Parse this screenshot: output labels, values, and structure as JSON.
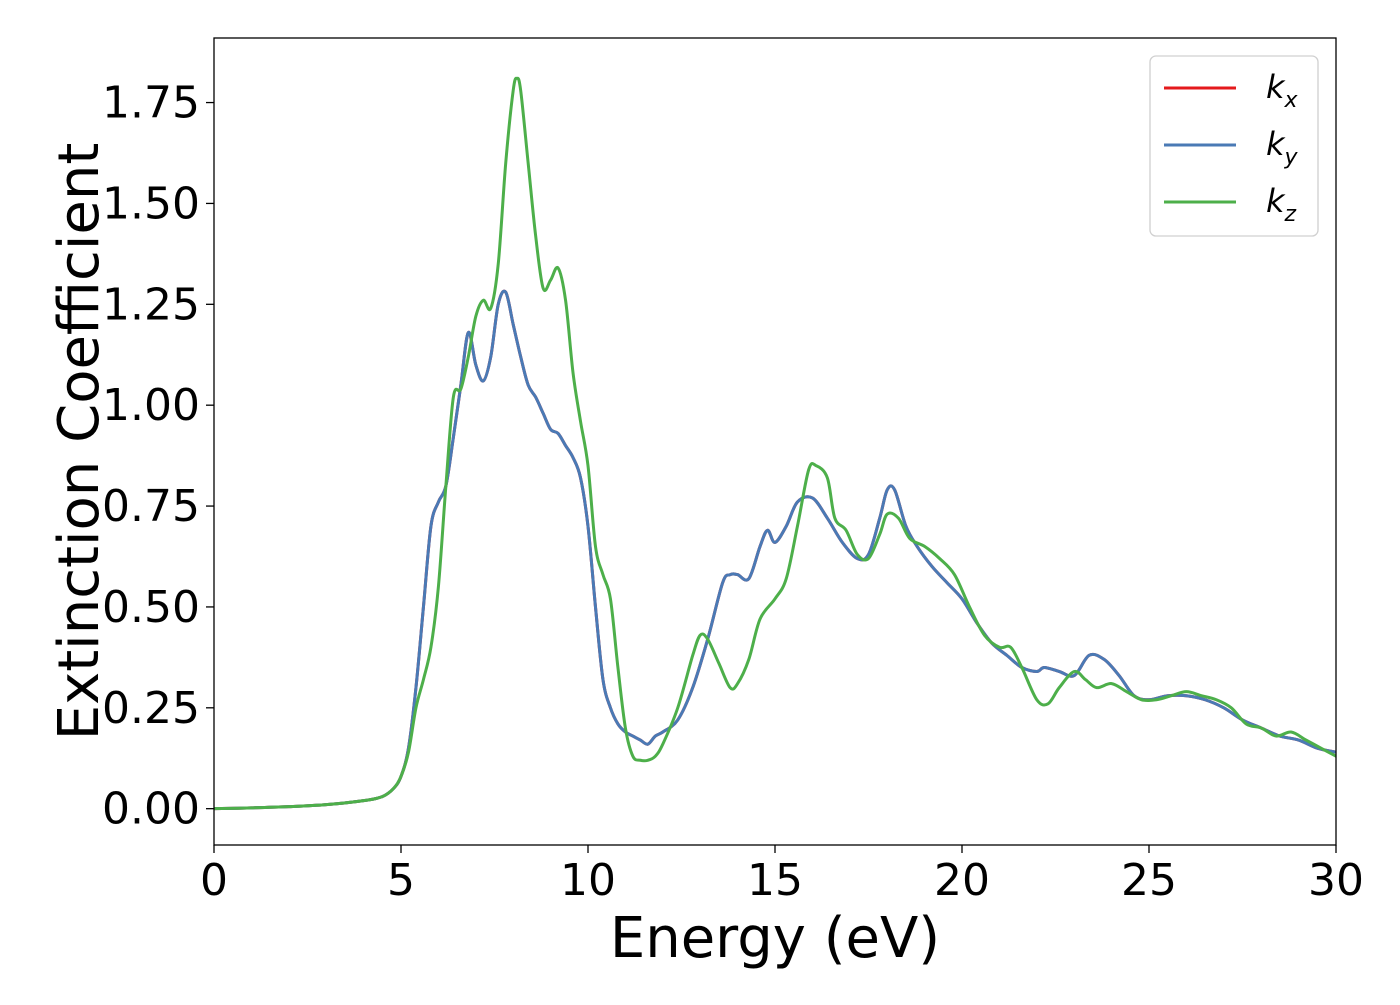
{
  "chart_data": {
    "type": "line",
    "title": "",
    "xlabel": "Energy (eV)",
    "ylabel": "Extinction Coefficient",
    "xlim": [
      0,
      30
    ],
    "ylim": [
      -0.09,
      1.91
    ],
    "xticks": [
      0,
      5,
      10,
      15,
      20,
      25,
      30
    ],
    "xtick_labels": [
      "0",
      "5",
      "10",
      "15",
      "20",
      "25",
      "30"
    ],
    "yticks": [
      0.0,
      0.25,
      0.5,
      0.75,
      1.0,
      1.25,
      1.5,
      1.75
    ],
    "ytick_labels": [
      "0.00",
      "0.25",
      "0.50",
      "0.75",
      "1.00",
      "1.25",
      "1.50",
      "1.75"
    ],
    "grid": false,
    "legend_position": "top-right",
    "series": [
      {
        "name": "k_x",
        "label_base": "k",
        "label_sub": "x",
        "color": "#e41a1c",
        "x": [
          0,
          1,
          2,
          3,
          4,
          4.5,
          4.8,
          5.0,
          5.2,
          5.4,
          5.6,
          5.8,
          6.0,
          6.2,
          6.4,
          6.6,
          6.8,
          7.0,
          7.2,
          7.4,
          7.6,
          7.8,
          8.0,
          8.2,
          8.4,
          8.6,
          8.8,
          9.0,
          9.2,
          9.4,
          9.6,
          9.8,
          10.0,
          10.2,
          10.4,
          10.6,
          10.8,
          11.0,
          11.2,
          11.4,
          11.6,
          11.8,
          12.0,
          12.4,
          12.8,
          13.2,
          13.6,
          13.8,
          14.0,
          14.3,
          14.6,
          14.8,
          15.0,
          15.3,
          15.6,
          16.0,
          16.4,
          16.8,
          17.2,
          17.5,
          17.8,
          18.0,
          18.2,
          18.5,
          18.8,
          19.2,
          19.6,
          20.0,
          20.4,
          20.8,
          21.2,
          21.6,
          22.0,
          22.2,
          22.6,
          23.0,
          23.4,
          23.8,
          24.2,
          24.6,
          25.0,
          25.5,
          26.0,
          26.5,
          27.0,
          27.5,
          28.0,
          28.5,
          29.0,
          29.5,
          30.0
        ],
        "y": [
          0.0,
          0.002,
          0.005,
          0.01,
          0.02,
          0.03,
          0.05,
          0.08,
          0.15,
          0.3,
          0.5,
          0.7,
          0.76,
          0.8,
          0.92,
          1.05,
          1.18,
          1.1,
          1.06,
          1.12,
          1.25,
          1.28,
          1.2,
          1.12,
          1.05,
          1.02,
          0.98,
          0.94,
          0.93,
          0.9,
          0.87,
          0.82,
          0.7,
          0.5,
          0.32,
          0.25,
          0.21,
          0.19,
          0.18,
          0.17,
          0.16,
          0.18,
          0.19,
          0.22,
          0.3,
          0.42,
          0.56,
          0.58,
          0.58,
          0.57,
          0.65,
          0.69,
          0.66,
          0.7,
          0.76,
          0.77,
          0.72,
          0.66,
          0.62,
          0.63,
          0.72,
          0.79,
          0.79,
          0.7,
          0.65,
          0.6,
          0.56,
          0.52,
          0.46,
          0.41,
          0.38,
          0.35,
          0.34,
          0.35,
          0.34,
          0.33,
          0.38,
          0.37,
          0.33,
          0.28,
          0.27,
          0.28,
          0.28,
          0.27,
          0.25,
          0.22,
          0.2,
          0.18,
          0.17,
          0.15,
          0.14
        ]
      },
      {
        "name": "k_y",
        "label_base": "k",
        "label_sub": "y",
        "color": "#4a7ab5",
        "x": [
          0,
          1,
          2,
          3,
          4,
          4.5,
          4.8,
          5.0,
          5.2,
          5.4,
          5.6,
          5.8,
          6.0,
          6.2,
          6.4,
          6.6,
          6.8,
          7.0,
          7.2,
          7.4,
          7.6,
          7.8,
          8.0,
          8.2,
          8.4,
          8.6,
          8.8,
          9.0,
          9.2,
          9.4,
          9.6,
          9.8,
          10.0,
          10.2,
          10.4,
          10.6,
          10.8,
          11.0,
          11.2,
          11.4,
          11.6,
          11.8,
          12.0,
          12.4,
          12.8,
          13.2,
          13.6,
          13.8,
          14.0,
          14.3,
          14.6,
          14.8,
          15.0,
          15.3,
          15.6,
          16.0,
          16.4,
          16.8,
          17.2,
          17.5,
          17.8,
          18.0,
          18.2,
          18.5,
          18.8,
          19.2,
          19.6,
          20.0,
          20.4,
          20.8,
          21.2,
          21.6,
          22.0,
          22.2,
          22.6,
          23.0,
          23.4,
          23.8,
          24.2,
          24.6,
          25.0,
          25.5,
          26.0,
          26.5,
          27.0,
          27.5,
          28.0,
          28.5,
          29.0,
          29.5,
          30.0
        ],
        "y": [
          0.0,
          0.002,
          0.005,
          0.01,
          0.02,
          0.03,
          0.05,
          0.08,
          0.15,
          0.3,
          0.5,
          0.7,
          0.76,
          0.8,
          0.92,
          1.05,
          1.18,
          1.1,
          1.06,
          1.12,
          1.25,
          1.28,
          1.2,
          1.12,
          1.05,
          1.02,
          0.98,
          0.94,
          0.93,
          0.9,
          0.87,
          0.82,
          0.7,
          0.5,
          0.32,
          0.25,
          0.21,
          0.19,
          0.18,
          0.17,
          0.16,
          0.18,
          0.19,
          0.22,
          0.3,
          0.42,
          0.56,
          0.58,
          0.58,
          0.57,
          0.65,
          0.69,
          0.66,
          0.7,
          0.76,
          0.77,
          0.72,
          0.66,
          0.62,
          0.63,
          0.72,
          0.79,
          0.79,
          0.7,
          0.65,
          0.6,
          0.56,
          0.52,
          0.46,
          0.41,
          0.38,
          0.35,
          0.34,
          0.35,
          0.34,
          0.33,
          0.38,
          0.37,
          0.33,
          0.28,
          0.27,
          0.28,
          0.28,
          0.27,
          0.25,
          0.22,
          0.2,
          0.18,
          0.17,
          0.15,
          0.14
        ]
      },
      {
        "name": "k_z",
        "label_base": "k",
        "label_sub": "z",
        "color": "#4daf4a",
        "x": [
          0,
          1,
          2,
          3,
          4,
          4.5,
          4.8,
          5.0,
          5.2,
          5.4,
          5.6,
          5.8,
          6.0,
          6.2,
          6.4,
          6.6,
          6.8,
          7.0,
          7.2,
          7.4,
          7.6,
          7.8,
          8.0,
          8.1,
          8.2,
          8.4,
          8.6,
          8.8,
          9.0,
          9.2,
          9.4,
          9.6,
          9.8,
          10.0,
          10.2,
          10.4,
          10.6,
          10.8,
          11.0,
          11.2,
          11.4,
          11.6,
          11.8,
          12.0,
          12.4,
          12.8,
          13.0,
          13.2,
          13.5,
          13.8,
          14.0,
          14.3,
          14.6,
          15.0,
          15.3,
          15.6,
          15.9,
          16.1,
          16.4,
          16.6,
          16.9,
          17.2,
          17.5,
          17.8,
          18.0,
          18.3,
          18.6,
          19.0,
          19.4,
          19.8,
          20.2,
          20.6,
          21.0,
          21.3,
          21.6,
          22.0,
          22.3,
          22.6,
          23.0,
          23.3,
          23.6,
          24.0,
          24.4,
          24.8,
          25.2,
          25.6,
          26.0,
          26.4,
          26.8,
          27.2,
          27.6,
          28.0,
          28.4,
          28.8,
          29.2,
          29.6,
          30.0
        ],
        "y": [
          0.0,
          0.002,
          0.005,
          0.01,
          0.02,
          0.03,
          0.05,
          0.08,
          0.14,
          0.25,
          0.32,
          0.4,
          0.55,
          0.8,
          1.02,
          1.04,
          1.12,
          1.22,
          1.26,
          1.24,
          1.35,
          1.6,
          1.78,
          1.81,
          1.78,
          1.6,
          1.42,
          1.29,
          1.31,
          1.34,
          1.26,
          1.08,
          0.96,
          0.85,
          0.65,
          0.58,
          0.52,
          0.35,
          0.2,
          0.13,
          0.12,
          0.12,
          0.13,
          0.16,
          0.25,
          0.38,
          0.43,
          0.42,
          0.36,
          0.3,
          0.31,
          0.37,
          0.47,
          0.52,
          0.57,
          0.7,
          0.84,
          0.85,
          0.82,
          0.72,
          0.69,
          0.63,
          0.62,
          0.68,
          0.73,
          0.72,
          0.67,
          0.65,
          0.62,
          0.58,
          0.5,
          0.43,
          0.4,
          0.4,
          0.35,
          0.27,
          0.26,
          0.3,
          0.34,
          0.32,
          0.3,
          0.31,
          0.29,
          0.27,
          0.27,
          0.28,
          0.29,
          0.28,
          0.27,
          0.25,
          0.21,
          0.2,
          0.18,
          0.19,
          0.17,
          0.15,
          0.13
        ]
      }
    ]
  }
}
